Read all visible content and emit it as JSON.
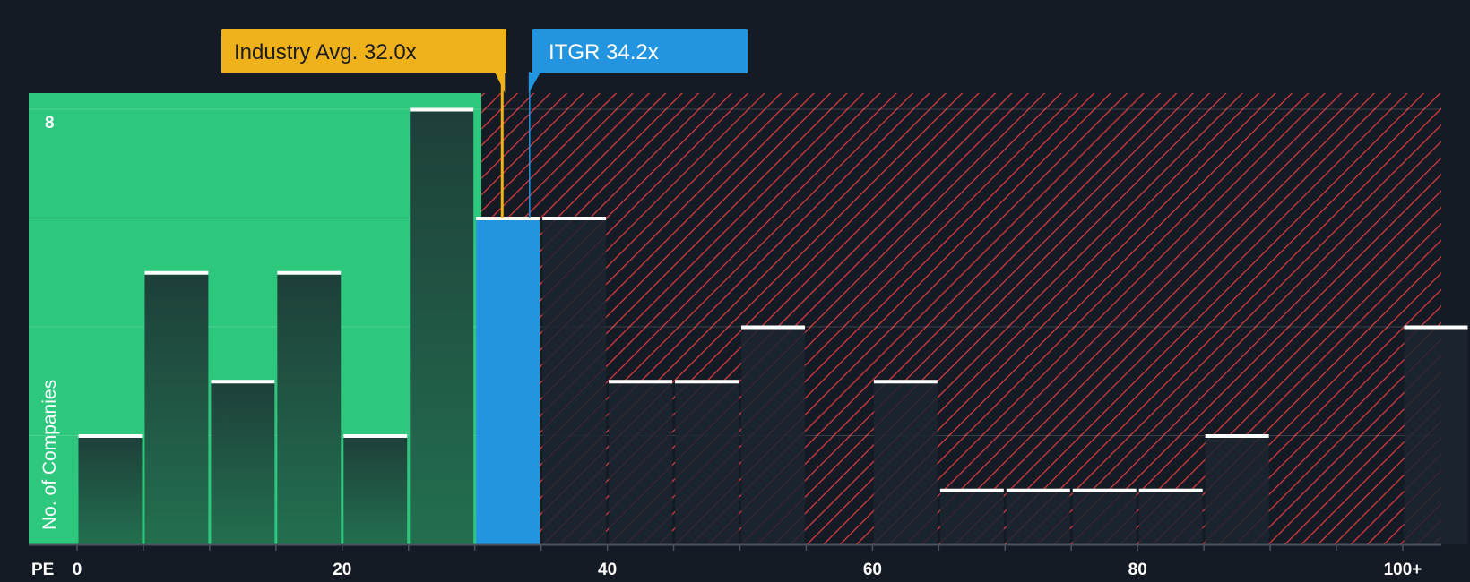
{
  "chart_data": {
    "type": "bar",
    "xlabel": "PE",
    "ylabel": "No. of Companies",
    "ylim": [
      0,
      8
    ],
    "xlim": [
      0,
      102
    ],
    "bin_width": 5,
    "x_ticks": [
      {
        "value": 0,
        "label": "0"
      },
      {
        "value": 20,
        "label": "20"
      },
      {
        "value": 40,
        "label": "40"
      },
      {
        "value": 60,
        "label": "60"
      },
      {
        "value": 80,
        "label": "80"
      },
      {
        "value": 100,
        "label": "100+"
      }
    ],
    "y_tick_labels": [
      {
        "value": 8,
        "label": "8"
      }
    ],
    "bins": [
      {
        "start": 0,
        "count": 2
      },
      {
        "start": 5,
        "count": 5
      },
      {
        "start": 10,
        "count": 3
      },
      {
        "start": 15,
        "count": 5
      },
      {
        "start": 20,
        "count": 2
      },
      {
        "start": 25,
        "count": 8
      },
      {
        "start": 30,
        "count": 6,
        "highlight": true
      },
      {
        "start": 35,
        "count": 6
      },
      {
        "start": 40,
        "count": 3
      },
      {
        "start": 45,
        "count": 3
      },
      {
        "start": 50,
        "count": 4
      },
      {
        "start": 55,
        "count": 0
      },
      {
        "start": 60,
        "count": 3
      },
      {
        "start": 65,
        "count": 1
      },
      {
        "start": 70,
        "count": 1
      },
      {
        "start": 75,
        "count": 1
      },
      {
        "start": 80,
        "count": 1
      },
      {
        "start": 85,
        "count": 2
      },
      {
        "start": 90,
        "count": 0
      },
      {
        "start": 95,
        "count": 0
      },
      {
        "start": 100,
        "count": 4
      }
    ],
    "fair_zone_end": 30.5,
    "industry_avg": {
      "value": 32.0,
      "label": "Industry Avg. 32.0x"
    },
    "company": {
      "value": 34.2,
      "label": "ITGR 34.2x"
    },
    "grid": true,
    "colors": {
      "background": "#151b24",
      "fair_zone": "#2ec77e",
      "bar_in_zone": "#1f4a3e",
      "bar_out_zone": "#1d2530",
      "highlight_bar": "#2394e0",
      "hatch": "#d63a44",
      "bar_cap": "#ffffff",
      "industry_callout": "#f0b21a",
      "industry_text": "#1c1c1c",
      "company_callout": "#2394e0",
      "company_text": "#ffffff",
      "axis": "#4a5260"
    }
  }
}
